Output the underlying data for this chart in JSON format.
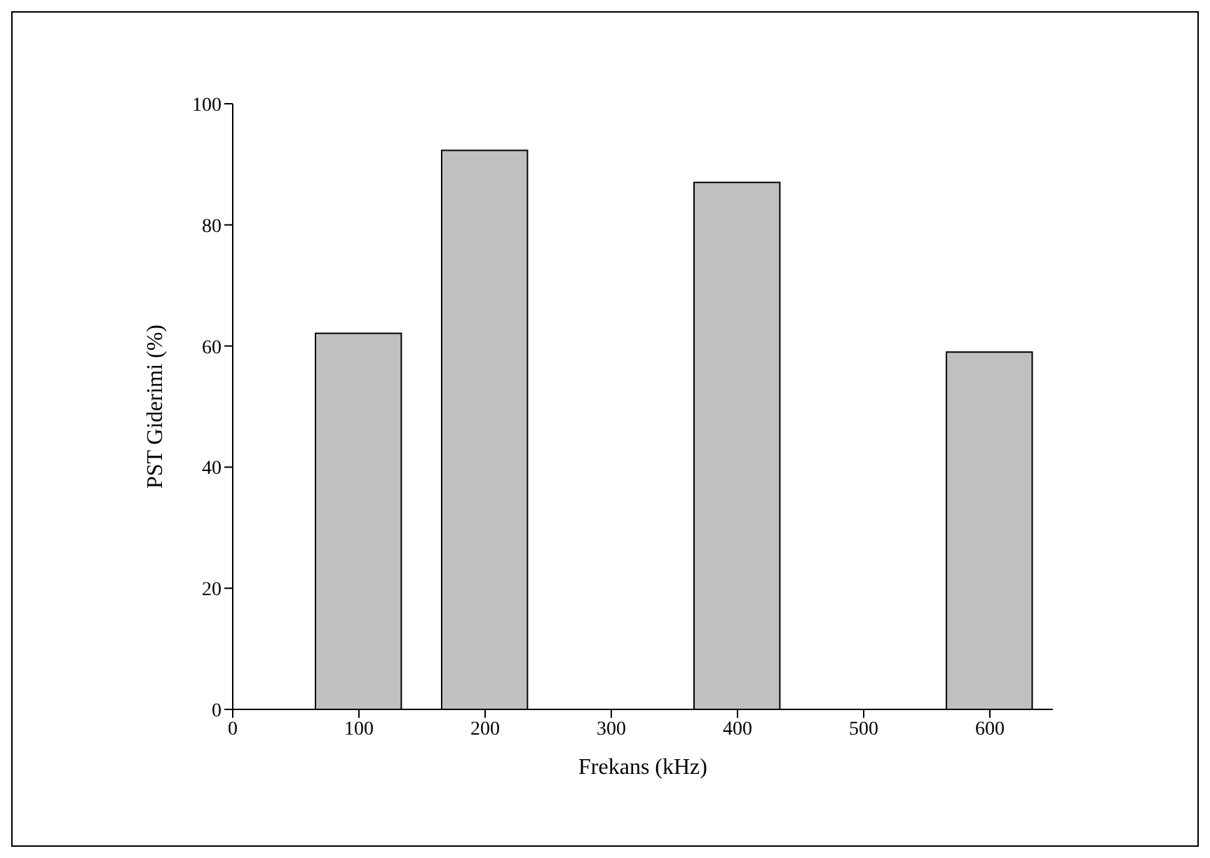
{
  "chart_data": {
    "type": "bar",
    "x": [
      100,
      200,
      400,
      600
    ],
    "values": [
      62.1,
      92.3,
      87.0,
      59.0
    ],
    "color": "#c0c0c0",
    "xlim": [
      0,
      650
    ],
    "xticks": [
      0,
      100,
      200,
      300,
      400,
      500,
      600
    ],
    "ylim": [
      0,
      100
    ],
    "yticks": [
      0,
      20,
      40,
      60,
      80,
      100
    ],
    "xlabel": "Frekans (kHz)",
    "ylabel": "PST Giderimi (%)",
    "grid": false
  }
}
